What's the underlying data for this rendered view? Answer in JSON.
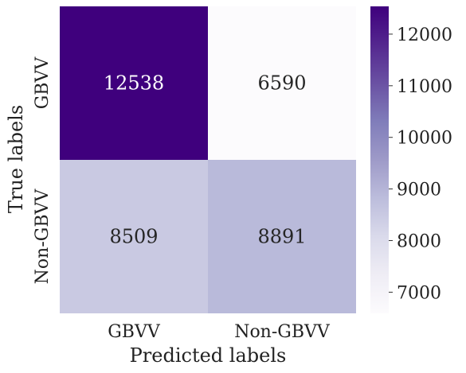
{
  "chart_data": {
    "type": "heatmap",
    "title": "",
    "xlabel": "Predicted labels",
    "ylabel": "True labels",
    "x_categories": [
      "GBVV",
      "Non-GBVV"
    ],
    "y_categories": [
      "GBVV",
      "Non-GBVV"
    ],
    "values": [
      [
        12538,
        6590
      ],
      [
        8509,
        8891
      ]
    ],
    "colorscale": "Purples",
    "colorbar": {
      "ticks": [
        7000,
        8000,
        9000,
        10000,
        11000,
        12000
      ],
      "tick_labels": [
        "7000",
        "8000",
        "9000",
        "10000",
        "11000",
        "12000"
      ],
      "range": [
        6590,
        12538
      ]
    },
    "annotations": true
  }
}
